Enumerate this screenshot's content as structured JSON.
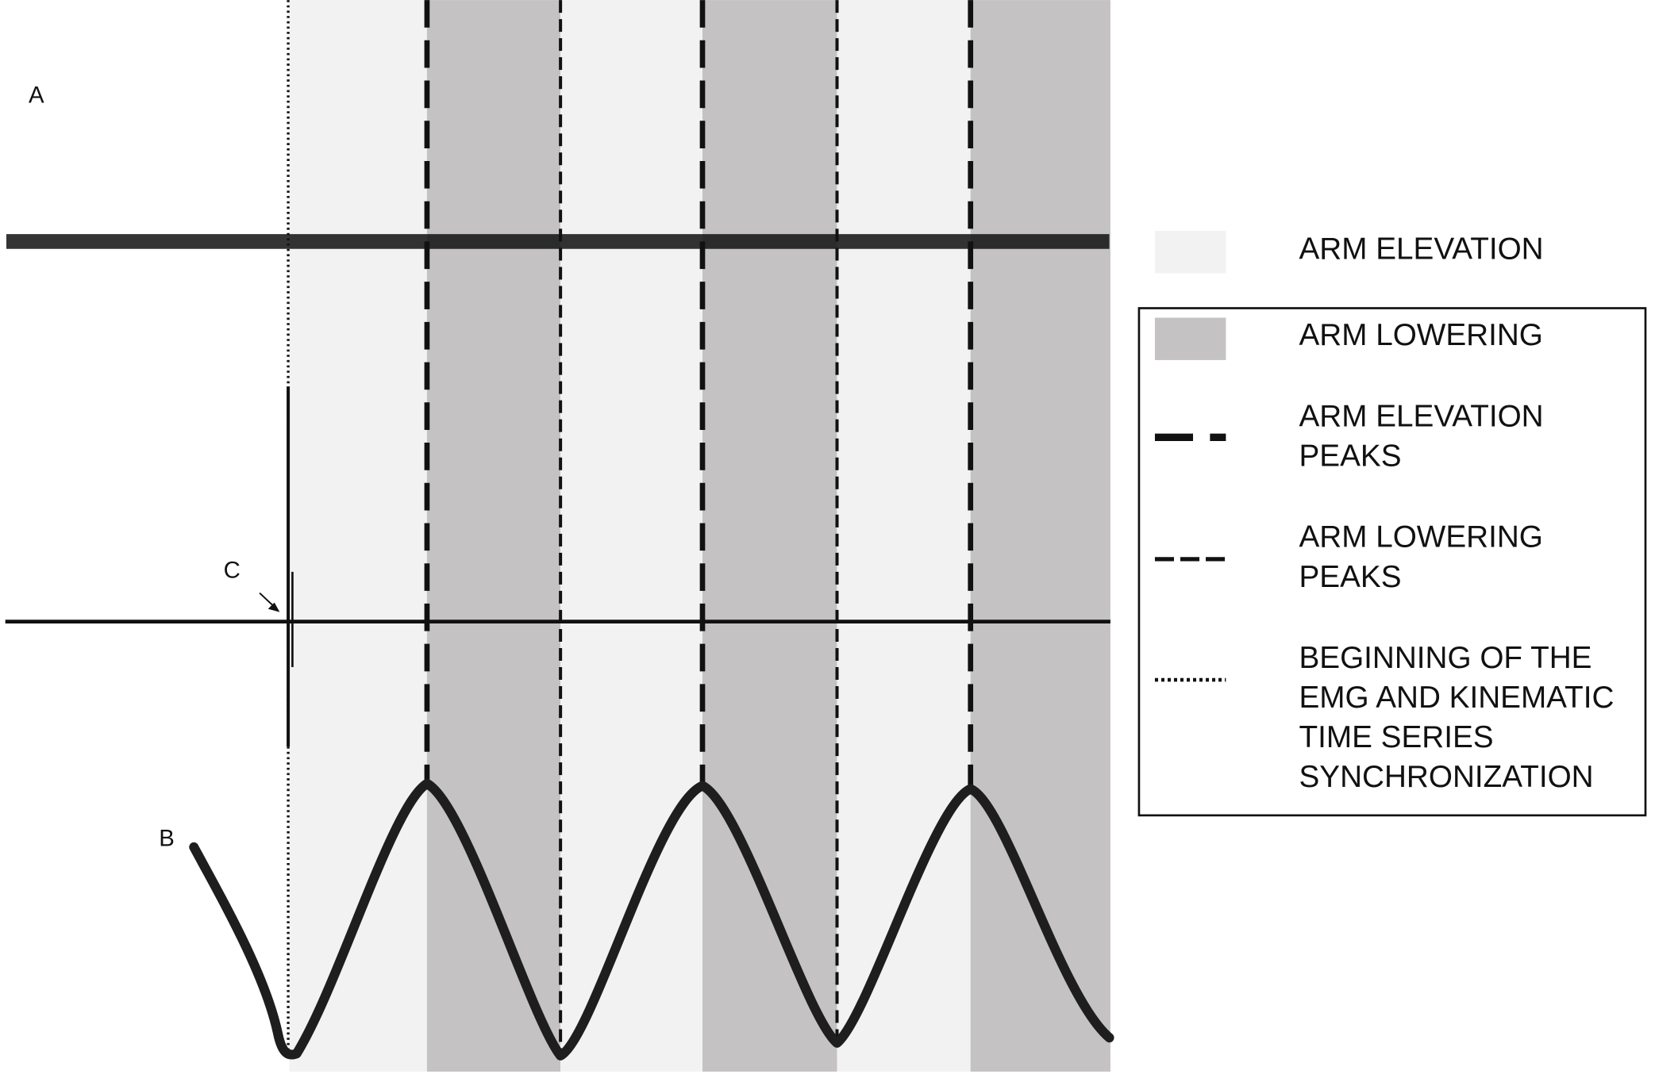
{
  "panels": {
    "a": "A",
    "b": "B",
    "c": "C"
  },
  "legend": {
    "items": [
      {
        "lines": [
          "ARM ELEVATION"
        ]
      },
      {
        "lines": [
          "ARM LOWERING"
        ]
      },
      {
        "lines": [
          "ARM ELEVATION",
          "PEAKS"
        ]
      },
      {
        "lines": [
          "ARM LOWERING",
          "PEAKS"
        ]
      },
      {
        "lines": [
          "BEGINNING OF THE",
          "EMG AND KINEMATIC",
          "TIME SERIES",
          "SYNCHRONIZATION"
        ]
      }
    ]
  }
}
